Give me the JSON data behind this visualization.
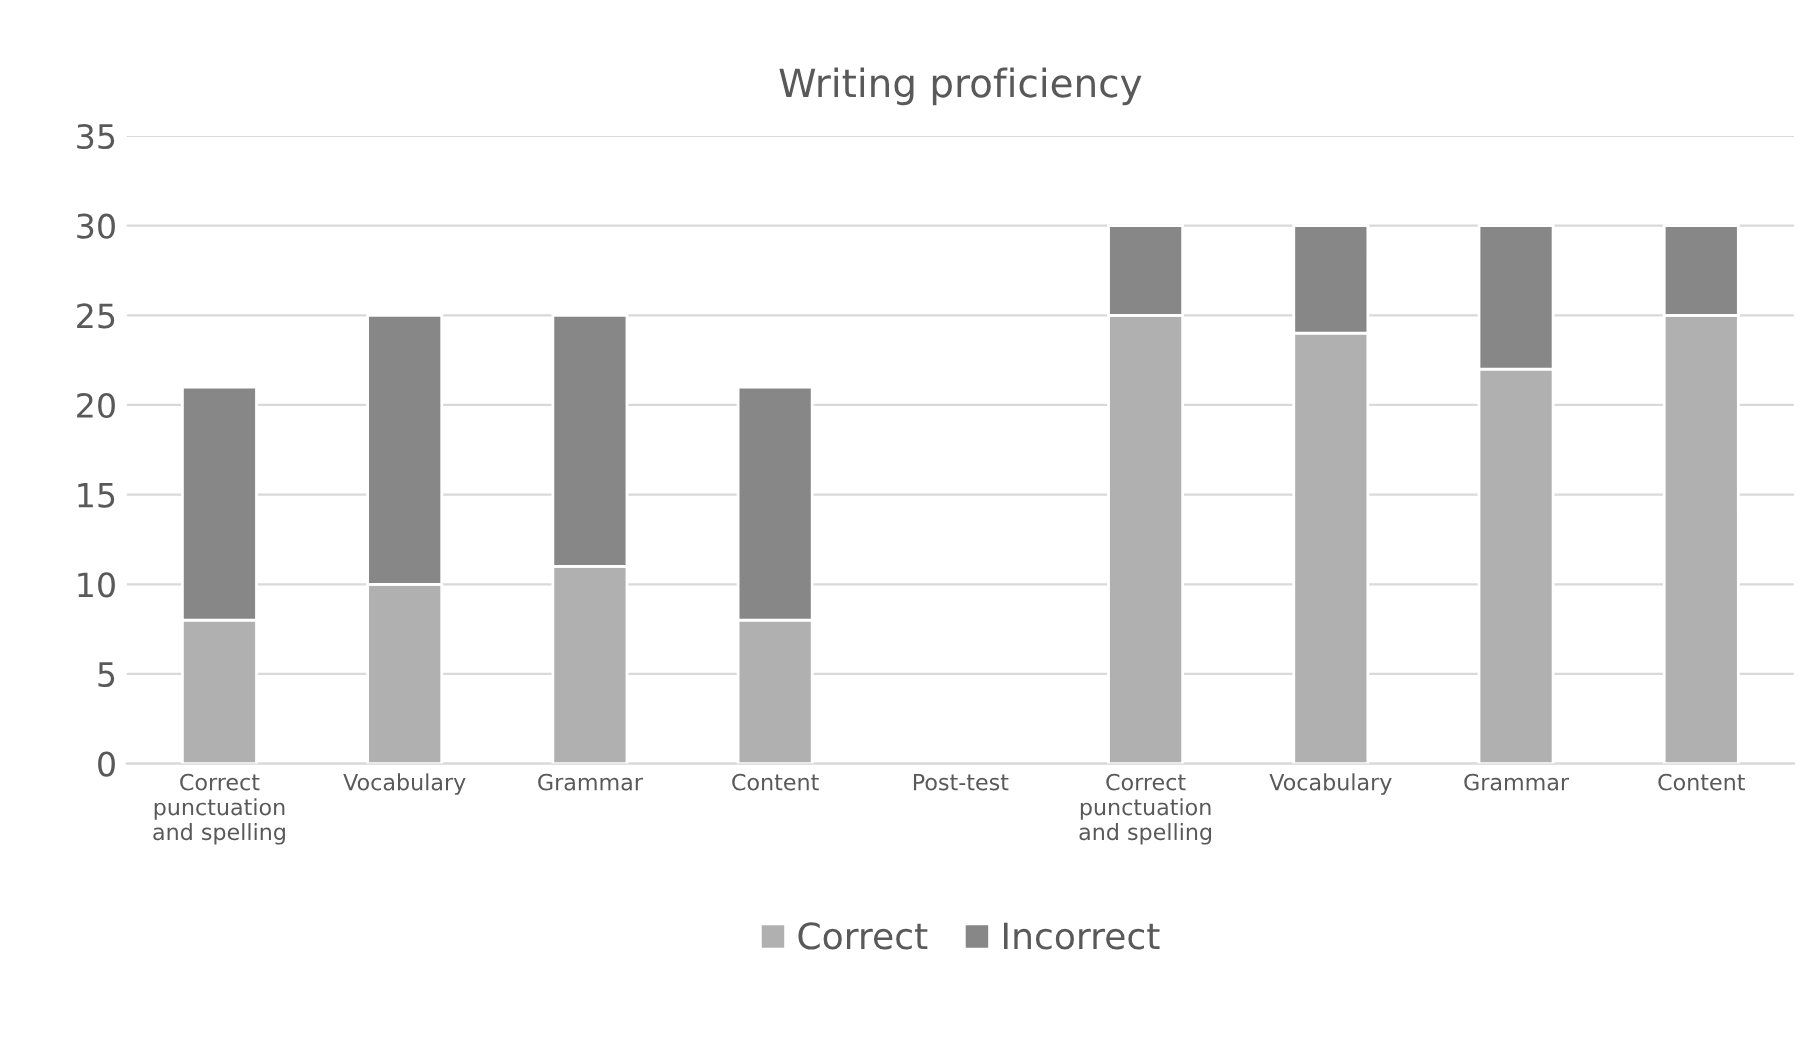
{
  "chart_data": {
    "type": "bar",
    "title": "Writing proficiency",
    "stacked": true,
    "categories": [
      "Correct\npunctuation\nand spelling",
      "Vocabulary",
      "Grammar",
      "Content",
      "Post-test",
      "Correct\npunctuation\nand spelling",
      "Vocabulary",
      "Grammar",
      "Content"
    ],
    "series": [
      {
        "name": "Correct",
        "color": "#b0b0b0",
        "values": [
          8,
          10,
          11,
          8,
          null,
          25,
          24,
          22,
          25
        ]
      },
      {
        "name": "Incorrect",
        "color": "#878787",
        "values": [
          13,
          15,
          14,
          13,
          null,
          5,
          6,
          8,
          5
        ]
      }
    ],
    "ylim": [
      0,
      35
    ],
    "yticks": [
      0,
      5,
      10,
      15,
      20,
      25,
      30,
      35
    ],
    "grid": "y",
    "legend": "bottom"
  }
}
